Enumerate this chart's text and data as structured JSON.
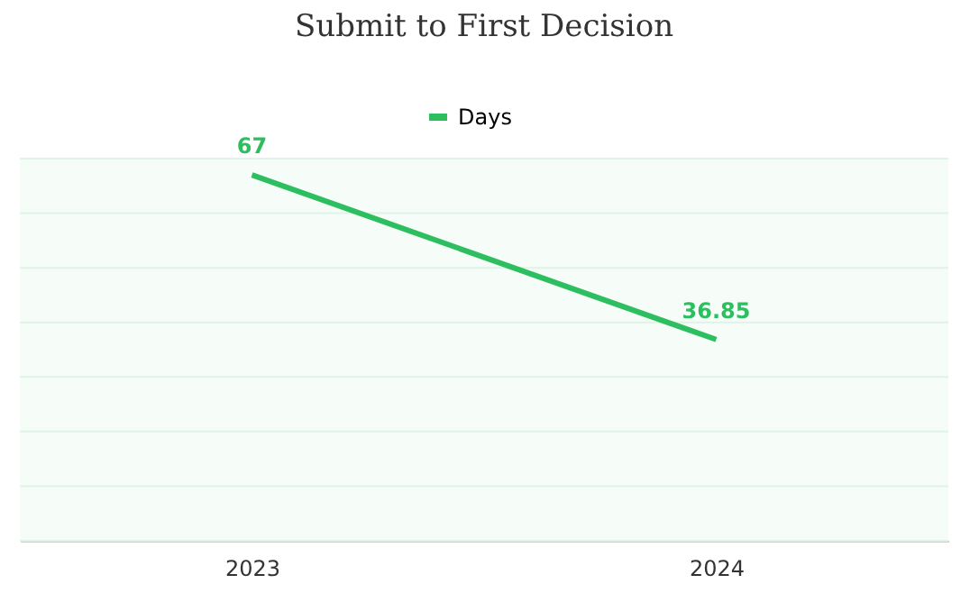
{
  "chart_data": {
    "type": "line",
    "title": "Submit to First Decision",
    "categories": [
      "2023",
      "2024"
    ],
    "series": [
      {
        "name": "Days",
        "color": "#2dbe60",
        "values": [
          67,
          36.85
        ]
      }
    ],
    "ylim": [
      0,
      70
    ],
    "yticks": [
      {
        "value": 0,
        "label": null
      },
      {
        "value": 10,
        "label": null
      },
      {
        "value": 20,
        "label": null
      },
      {
        "value": 30,
        "label": null
      },
      {
        "value": 40,
        "label": null
      },
      {
        "value": 50,
        "label": null
      },
      {
        "value": 60,
        "label": null
      },
      {
        "value": 70,
        "label": null
      }
    ],
    "tick_labels": "x",
    "grid": "y",
    "legend": "top",
    "marker": "none",
    "line_style": "solid",
    "data_labels": true
  }
}
